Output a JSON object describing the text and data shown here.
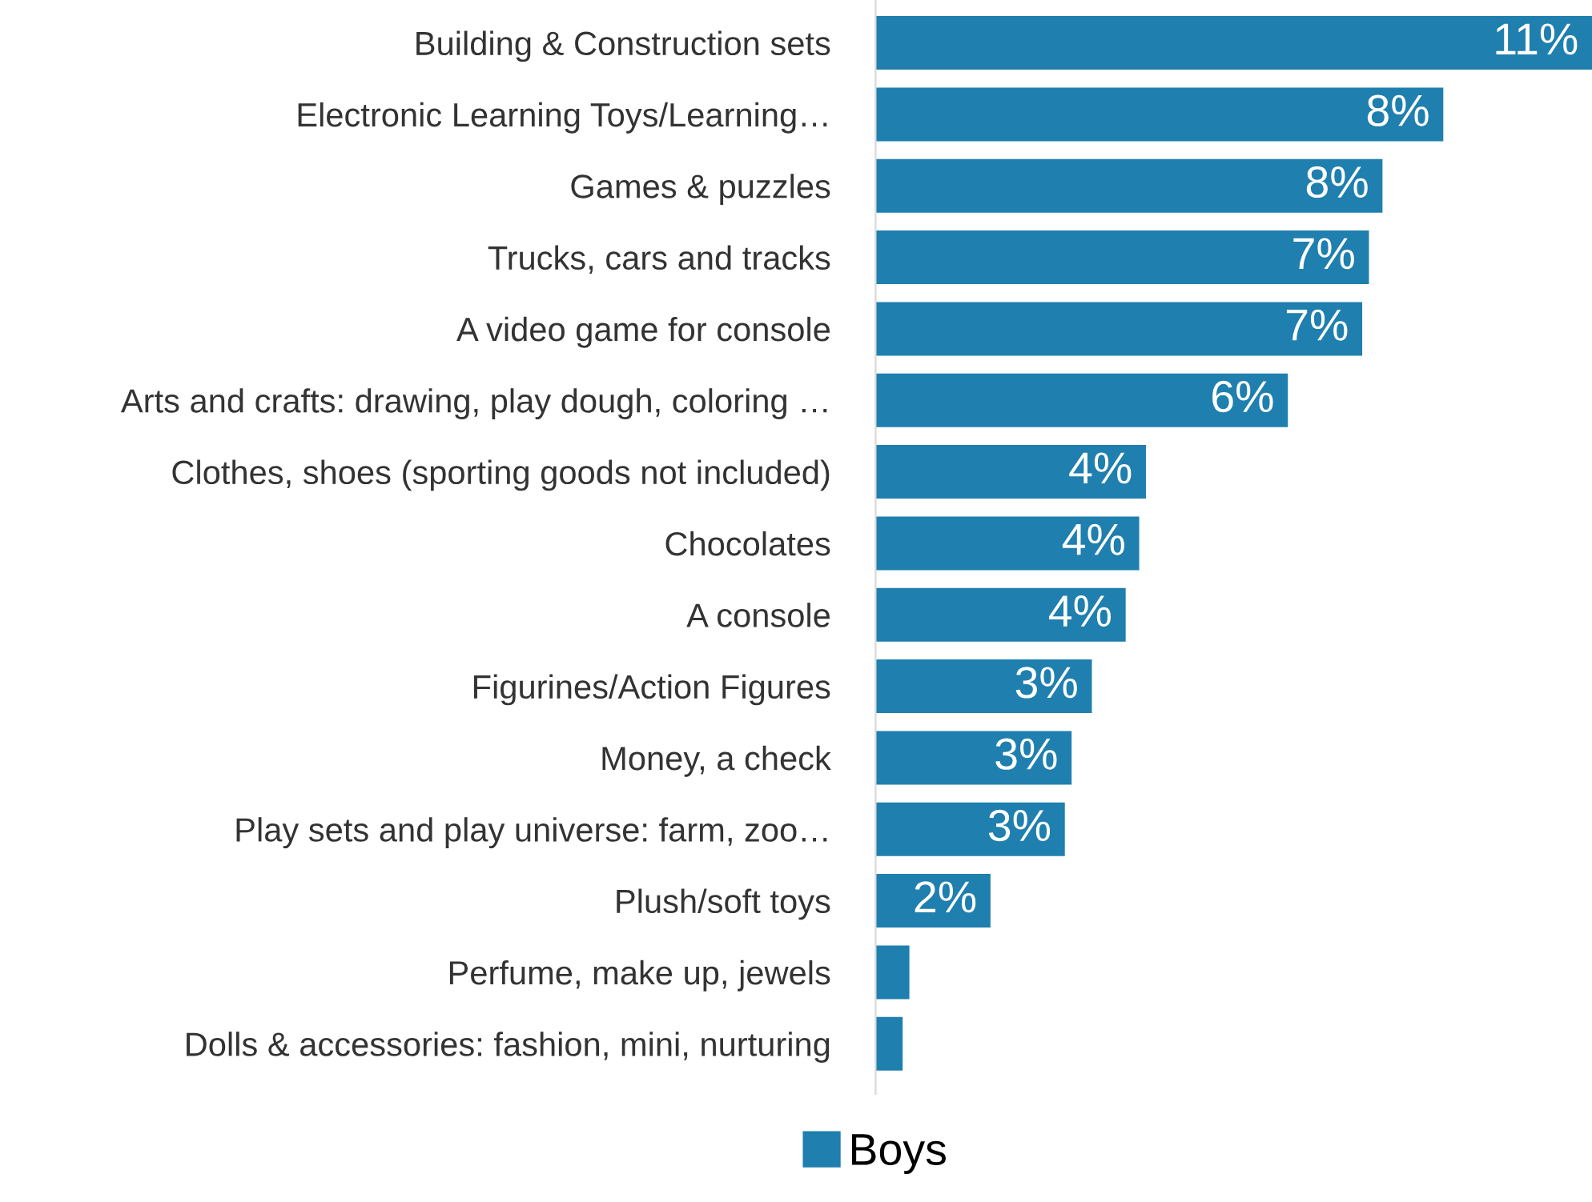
{
  "chart_data": {
    "type": "bar",
    "orientation": "horizontal",
    "categories": [
      "Building & Construction sets",
      "Electronic Learning Toys/Learning…",
      "Games & puzzles",
      "Trucks, cars and tracks",
      "A video game for console",
      "Arts and crafts: drawing, play dough, coloring …",
      "Clothes, shoes (sporting goods not included)",
      "Chocolates",
      "A console",
      "Figurines/Action Figures",
      "Money, a check",
      "Play sets and play universe: farm, zoo…",
      "Plush/soft toys",
      "Perfume, make up, jewels",
      "Dolls & accessories: fashion, mini, nurturing"
    ],
    "series": [
      {
        "name": "Boys",
        "color": "#1f7fae",
        "values": [
          10.6,
          8.4,
          7.5,
          7.3,
          7.2,
          6.1,
          4.0,
          3.9,
          3.7,
          3.2,
          2.9,
          2.8,
          1.7,
          0.5,
          0.4
        ],
        "value_labels": [
          "11%",
          "8%",
          "8%",
          "7%",
          "7%",
          "6%",
          "4%",
          "4%",
          "4%",
          "3%",
          "3%",
          "3%",
          "2%",
          null,
          null
        ]
      }
    ],
    "legend": "bottom",
    "grid": false
  }
}
